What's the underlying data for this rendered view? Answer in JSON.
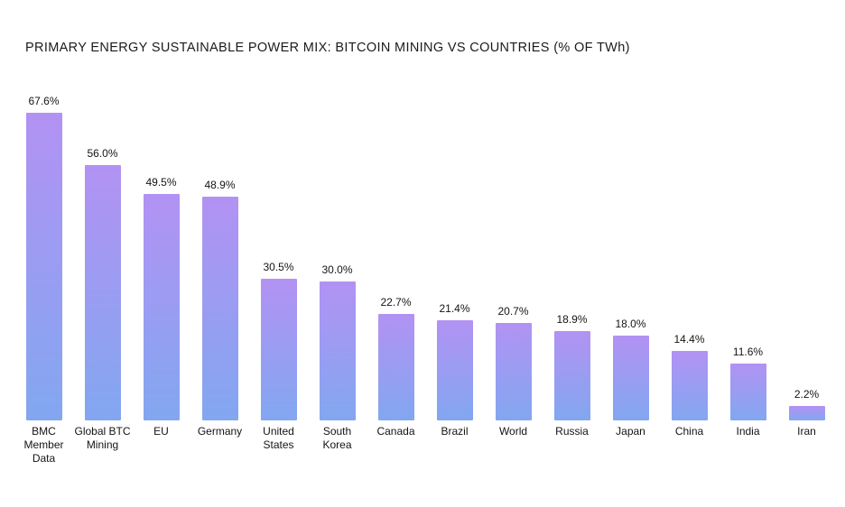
{
  "chart_data": {
    "type": "bar",
    "title": "PRIMARY ENERGY SUSTAINABLE POWER MIX: BITCOIN MINING VS COUNTRIES (% OF TWh)",
    "categories": [
      "BMC Member Data",
      "Global BTC Mining",
      "EU",
      "Germany",
      "United States",
      "South Korea",
      "Canada",
      "Brazil",
      "World",
      "Russia",
      "Japan",
      "China",
      "India",
      "Iran"
    ],
    "category_label_lines": [
      "BMC\nMember\nData",
      "Global BTC\nMining",
      "EU",
      "Germany",
      "United\nStates",
      "South\nKorea",
      "Canada",
      "Brazil",
      "World",
      "Russia",
      "Japan",
      "China",
      "India",
      "Iran"
    ],
    "values": [
      67.6,
      56.0,
      49.5,
      48.9,
      30.5,
      30.0,
      22.7,
      21.4,
      20.7,
      18.9,
      18.0,
      14.4,
      11.6,
      2.2
    ],
    "value_labels": [
      "67.6%",
      "56.0%",
      "49.5%",
      "48.9%",
      "30.5%",
      "30.0%",
      "22.7%",
      "21.4%",
      "20.7%",
      "18.9%",
      "18.0%",
      "14.4%",
      "11.6%",
      "2.2%"
    ],
    "xlabel": "",
    "ylabel": "",
    "ylim": [
      0,
      70
    ],
    "grid": false,
    "legend": null,
    "axis_lines": false,
    "bar_gradient_top": "#b292f3",
    "bar_gradient_bottom": "#82a7f0"
  },
  "colors": {
    "background": "#ffffff",
    "title_text": "#1b1b1b",
    "label_text": "#141414"
  }
}
